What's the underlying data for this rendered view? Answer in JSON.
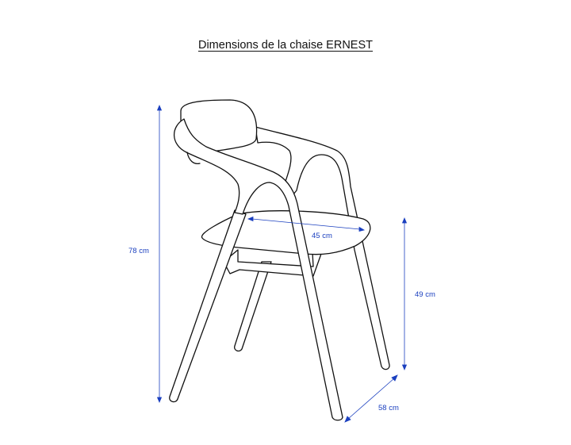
{
  "title": "Dimensions de la chaise ERNEST",
  "dimensions": {
    "height_total": "78 cm",
    "seat_width": "45 cm",
    "seat_height": "49 cm",
    "depth": "58 cm"
  },
  "colors": {
    "dimension_lines": "#1a3fbf",
    "outline": "#111111"
  }
}
